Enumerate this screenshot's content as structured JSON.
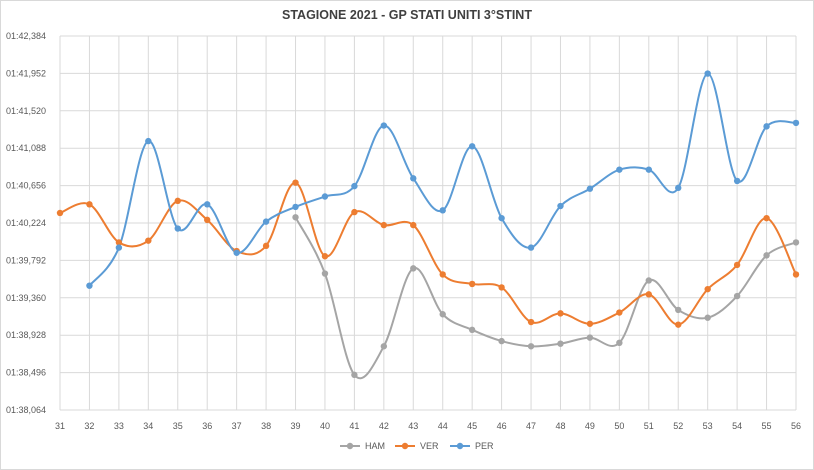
{
  "chart_data": {
    "type": "line",
    "title": "STAGIONE 2021 - GP STATI UNITI 3°STINT",
    "xlabel": "",
    "ylabel": "",
    "categories": [
      "31",
      "32",
      "33",
      "34",
      "35",
      "36",
      "37",
      "38",
      "39",
      "40",
      "41",
      "42",
      "43",
      "44",
      "45",
      "46",
      "47",
      "48",
      "49",
      "50",
      "51",
      "52",
      "53",
      "54",
      "55",
      "56"
    ],
    "ylim": [
      98.064,
      102.384
    ],
    "yticks": [
      98.064,
      98.496,
      98.928,
      99.36,
      99.792,
      100.224,
      100.656,
      101.088,
      101.52,
      101.952,
      102.384
    ],
    "ytick_labels": [
      "01:38,064",
      "01:38,496",
      "01:38,928",
      "01:39,360",
      "01:39,792",
      "01:40,224",
      "01:40,656",
      "01:41,088",
      "01:41,520",
      "01:41,952",
      "01:42,384"
    ],
    "grid": true,
    "legend_position": "bottom",
    "series": [
      {
        "name": "HAM",
        "color": "#a5a5a5",
        "values": [
          null,
          null,
          null,
          null,
          null,
          null,
          null,
          null,
          100.29,
          99.64,
          98.47,
          98.8,
          99.7,
          99.17,
          98.99,
          98.86,
          98.8,
          98.83,
          98.9,
          98.84,
          99.56,
          99.22,
          99.13,
          99.38,
          99.85,
          100.0
        ]
      },
      {
        "name": "VER",
        "color": "#ed7d31",
        "values": [
          100.34,
          100.44,
          100.0,
          100.02,
          100.48,
          100.26,
          99.9,
          99.96,
          100.69,
          99.84,
          100.35,
          100.2,
          100.2,
          99.63,
          99.52,
          99.48,
          99.08,
          99.18,
          99.06,
          99.19,
          99.4,
          99.05,
          99.46,
          99.74,
          100.28,
          99.63
        ]
      },
      {
        "name": "PER",
        "color": "#5b9bd5",
        "values": [
          null,
          99.5,
          99.94,
          101.17,
          100.16,
          100.44,
          99.88,
          100.24,
          100.41,
          100.53,
          100.65,
          101.35,
          100.74,
          100.37,
          101.11,
          100.28,
          99.94,
          100.42,
          100.62,
          100.84,
          100.84,
          100.63,
          101.95,
          100.71,
          101.34,
          101.38
        ]
      }
    ]
  }
}
